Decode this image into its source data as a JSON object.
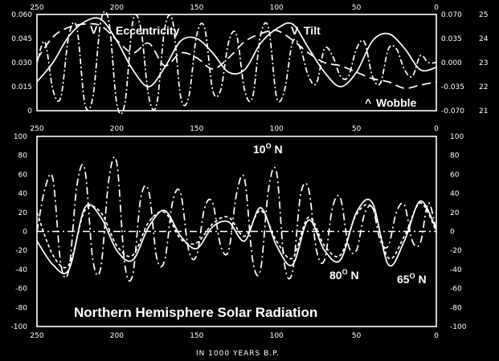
{
  "chart_data": [
    {
      "type": "line",
      "panel": "orbital-parameters",
      "x_direction": "decreasing-left-to-right",
      "xlim": [
        250,
        0
      ],
      "xticks": [
        "250",
        "200",
        "150",
        "100",
        "50",
        "0"
      ],
      "left_axis_ticks": [
        "0.060",
        "0.045",
        "0.030",
        "0.015",
        "0"
      ],
      "right_axis1_ticks": [
        "0.070",
        "0.035",
        "0.000",
        "-0.035",
        "-0.070"
      ],
      "right_axis2_ticks": [
        "25",
        "24",
        "23",
        "22",
        "21"
      ],
      "annotations": {
        "eccentricity": "Eccentricity",
        "tilt": "Tilt",
        "wobble": "Wobble"
      },
      "series": [
        {
          "name": "Eccentricity",
          "axis": "left",
          "ylim": [
            0,
            0.06
          ],
          "x": [
            250,
            240,
            230,
            220,
            210,
            200,
            190,
            180,
            170,
            160,
            150,
            140,
            130,
            120,
            110,
            100,
            90,
            80,
            70,
            60,
            50,
            40,
            30,
            20,
            10,
            0
          ],
          "values": [
            0.032,
            0.046,
            0.052,
            0.054,
            0.053,
            0.044,
            0.036,
            0.042,
            0.028,
            0.036,
            0.033,
            0.026,
            0.033,
            0.043,
            0.048,
            0.05,
            0.044,
            0.036,
            0.03,
            0.028,
            0.024,
            0.02,
            0.018,
            0.014,
            0.016,
            0.018
          ]
        },
        {
          "name": "Tilt",
          "axis": "right2",
          "ylim": [
            21,
            25
          ],
          "x": [
            250,
            240,
            230,
            220,
            210,
            200,
            190,
            180,
            170,
            160,
            150,
            140,
            130,
            120,
            110,
            100,
            90,
            80,
            70,
            60,
            50,
            40,
            30,
            20,
            10,
            0
          ],
          "values": [
            22.2,
            23.0,
            24.1,
            24.7,
            24.8,
            23.9,
            22.7,
            22.0,
            22.8,
            23.9,
            24.0,
            23.4,
            22.6,
            22.7,
            23.8,
            24.4,
            24.6,
            23.6,
            22.6,
            22.0,
            22.6,
            23.9,
            24.2,
            23.6,
            22.7,
            22.8
          ]
        },
        {
          "name": "Wobble",
          "axis": "right1",
          "ylim": [
            -0.07,
            0.07
          ],
          "x": [
            250,
            245,
            240,
            235,
            230,
            225,
            220,
            215,
            210,
            205,
            200,
            195,
            190,
            185,
            180,
            175,
            170,
            165,
            160,
            155,
            150,
            145,
            140,
            135,
            130,
            125,
            120,
            115,
            110,
            105,
            100,
            95,
            90,
            85,
            80,
            75,
            70,
            65,
            60,
            55,
            50,
            45,
            40,
            35,
            30,
            25,
            20,
            15,
            10,
            5,
            0
          ],
          "values": [
            0.0,
            0.03,
            -0.04,
            -0.05,
            0.04,
            0.05,
            -0.06,
            -0.05,
            0.06,
            0.06,
            -0.06,
            -0.06,
            0.06,
            0.05,
            -0.05,
            -0.06,
            0.05,
            0.06,
            -0.05,
            -0.05,
            0.04,
            0.05,
            -0.04,
            -0.04,
            0.03,
            0.04,
            -0.04,
            -0.05,
            0.04,
            0.05,
            -0.05,
            -0.04,
            0.03,
            0.02,
            -0.02,
            -0.03,
            0.02,
            0.01,
            -0.02,
            -0.02,
            0.02,
            0.03,
            -0.02,
            -0.03,
            0.02,
            0.02,
            -0.01,
            -0.02,
            0.01,
            0.0,
            0.0
          ]
        }
      ]
    },
    {
      "type": "line",
      "panel": "solar-radiation",
      "title": "Northern Hemisphere Solar Radiation",
      "xlabel": "IN 1000 YEARS B.P.",
      "xlim": [
        250,
        0
      ],
      "ylim": [
        -100,
        100
      ],
      "xticks": [
        "250",
        "200",
        "150",
        "100",
        "50",
        "0"
      ],
      "yticks": [
        "100",
        "80",
        "60",
        "40",
        "20",
        "0",
        "-20",
        "-40",
        "-60",
        "-80",
        "-100"
      ],
      "zero_line": "dash-dot",
      "series": [
        {
          "name": "10° N",
          "label_prefix": "10",
          "label_sup": "O",
          "label_suffix": " N",
          "x": [
            250,
            245,
            240,
            235,
            230,
            225,
            220,
            215,
            210,
            205,
            200,
            195,
            190,
            185,
            180,
            175,
            170,
            165,
            160,
            155,
            150,
            145,
            140,
            135,
            130,
            125,
            120,
            115,
            110,
            105,
            100,
            95,
            90,
            85,
            80,
            75,
            70,
            65,
            60,
            55,
            50,
            45,
            40,
            35,
            30,
            25,
            20,
            15,
            10,
            5,
            0
          ],
          "values": [
            0,
            45,
            55,
            -35,
            -40,
            48,
            65,
            -30,
            -38,
            55,
            72,
            -35,
            -45,
            35,
            42,
            -28,
            -30,
            32,
            40,
            -20,
            -25,
            25,
            30,
            -15,
            -20,
            40,
            55,
            -30,
            -40,
            45,
            62,
            -35,
            -42,
            38,
            45,
            -20,
            -30,
            25,
            35,
            -15,
            -20,
            18,
            25,
            -10,
            -15,
            20,
            28,
            -10,
            -12,
            30,
            0
          ]
        },
        {
          "name": "65° N",
          "label_prefix": "65",
          "label_sup": "O",
          "label_suffix": " N",
          "x": [
            250,
            240,
            230,
            220,
            210,
            200,
            190,
            180,
            170,
            160,
            150,
            140,
            130,
            120,
            110,
            100,
            90,
            80,
            70,
            60,
            50,
            40,
            30,
            20,
            10,
            0
          ],
          "values": [
            -10,
            -35,
            -40,
            25,
            15,
            -20,
            -30,
            5,
            22,
            -5,
            -18,
            5,
            10,
            -10,
            25,
            -15,
            -35,
            12,
            -20,
            -30,
            20,
            30,
            -35,
            -10,
            32,
            2
          ]
        },
        {
          "name": "80° N",
          "label_prefix": "80",
          "label_sup": "O",
          "label_suffix": " N",
          "x": [
            250,
            240,
            230,
            220,
            210,
            200,
            190,
            180,
            170,
            160,
            150,
            140,
            130,
            120,
            110,
            100,
            90,
            80,
            70,
            60,
            50,
            40,
            30,
            20,
            10,
            0
          ],
          "values": [
            20,
            -25,
            -35,
            22,
            20,
            -15,
            -25,
            10,
            20,
            -8,
            -12,
            8,
            15,
            -5,
            22,
            -10,
            -28,
            15,
            -15,
            -25,
            18,
            25,
            -28,
            -5,
            30,
            0
          ]
        }
      ]
    }
  ],
  "labels": {
    "tilt_letter": "V",
    "eccentricity_letter": "V",
    "wobble_letter": "^"
  }
}
